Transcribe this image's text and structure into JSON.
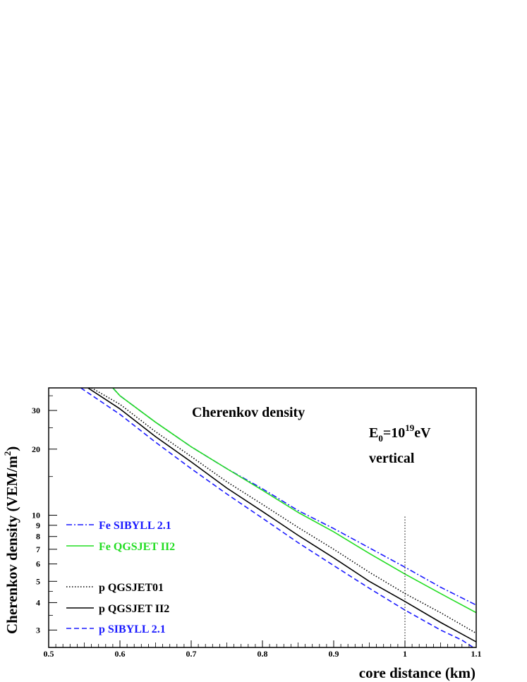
{
  "chart_data": {
    "type": "line",
    "title": "Cherenkov density",
    "xlabel": "core distance (km)",
    "ylabel": "Cherenkov density (VEM/m",
    "ylabel_sup": "2",
    "ylabel_close": ")",
    "xlim": [
      0.5,
      1.1
    ],
    "ylim": [
      2.5,
      38
    ],
    "yscale": "log",
    "grid": false,
    "legend_position": "bottom-left",
    "annotations": {
      "energy_base": "E",
      "energy_sub": "0",
      "energy_eq": "=10",
      "energy_exp": "19",
      "energy_unit": "eV",
      "direction": "vertical"
    },
    "x_ticks": [
      {
        "value": 0.5,
        "label": "0.5"
      },
      {
        "value": 0.6,
        "label": "0.6"
      },
      {
        "value": 0.7,
        "label": "0.7"
      },
      {
        "value": 0.8,
        "label": "0.8"
      },
      {
        "value": 0.9,
        "label": "0.9"
      },
      {
        "value": 1.0,
        "label": "1"
      },
      {
        "value": 1.1,
        "label": "1.1"
      }
    ],
    "y_ticks": [
      {
        "value": 3,
        "label": "3"
      },
      {
        "value": 4,
        "label": "4"
      },
      {
        "value": 5,
        "label": "5"
      },
      {
        "value": 6,
        "label": "6"
      },
      {
        "value": 7,
        "label": "7"
      },
      {
        "value": 8,
        "label": "8"
      },
      {
        "value": 9,
        "label": "9"
      },
      {
        "value": 10,
        "label": "10"
      },
      {
        "value": 20,
        "label": "20"
      },
      {
        "value": 30,
        "label": "30"
      }
    ],
    "reference_line": {
      "x": 1.0,
      "y_range": [
        2.5,
        10
      ]
    },
    "series": [
      {
        "name": "Fe SIBYLL 2.1",
        "color": "#1a1aff",
        "dash": "dashdot",
        "x": [
          0.59,
          0.6,
          0.65,
          0.7,
          0.75,
          0.8,
          0.85,
          0.9,
          0.95,
          1.0,
          1.05,
          1.1
        ],
        "y": [
          38,
          35,
          26.5,
          20.5,
          16.3,
          13.2,
          10.5,
          8.7,
          7.1,
          5.8,
          4.7,
          3.9
        ]
      },
      {
        "name": "Fe QGSJET II2",
        "color": "#22dd22",
        "dash": "solid",
        "x": [
          0.59,
          0.6,
          0.65,
          0.7,
          0.75,
          0.8,
          0.85,
          0.9,
          0.95,
          1.0,
          1.05,
          1.1
        ],
        "y": [
          38,
          35,
          26.5,
          20.5,
          16.3,
          13.0,
          10.3,
          8.4,
          6.7,
          5.4,
          4.4,
          3.6
        ]
      },
      {
        "name": "p QGSJET01",
        "color": "#000000",
        "dash": "dotted",
        "x": [
          0.56,
          0.6,
          0.65,
          0.7,
          0.75,
          0.8,
          0.85,
          0.9,
          0.95,
          1.0,
          1.05,
          1.1
        ],
        "y": [
          38,
          32,
          24,
          18.5,
          14.2,
          11.2,
          8.8,
          7.0,
          5.5,
          4.4,
          3.6,
          2.9
        ]
      },
      {
        "name": "p QGSJET II2",
        "color": "#000000",
        "dash": "solid",
        "x": [
          0.555,
          0.6,
          0.65,
          0.7,
          0.75,
          0.8,
          0.85,
          0.9,
          0.95,
          1.0,
          1.05,
          1.1
        ],
        "y": [
          38,
          30.5,
          22.8,
          17.5,
          13.3,
          10.4,
          8.1,
          6.4,
          5.0,
          4.05,
          3.25,
          2.65
        ]
      },
      {
        "name": "p SIBYLL 2.1",
        "color": "#1a1aff",
        "dash": "dashed",
        "x": [
          0.545,
          0.6,
          0.65,
          0.7,
          0.75,
          0.8,
          0.85,
          0.9,
          0.95,
          1.0,
          1.05,
          1.08,
          1.1
        ],
        "y": [
          38,
          28.8,
          21.5,
          16.3,
          12.5,
          9.7,
          7.5,
          5.9,
          4.65,
          3.7,
          3.0,
          2.7,
          2.45
        ]
      }
    ]
  }
}
